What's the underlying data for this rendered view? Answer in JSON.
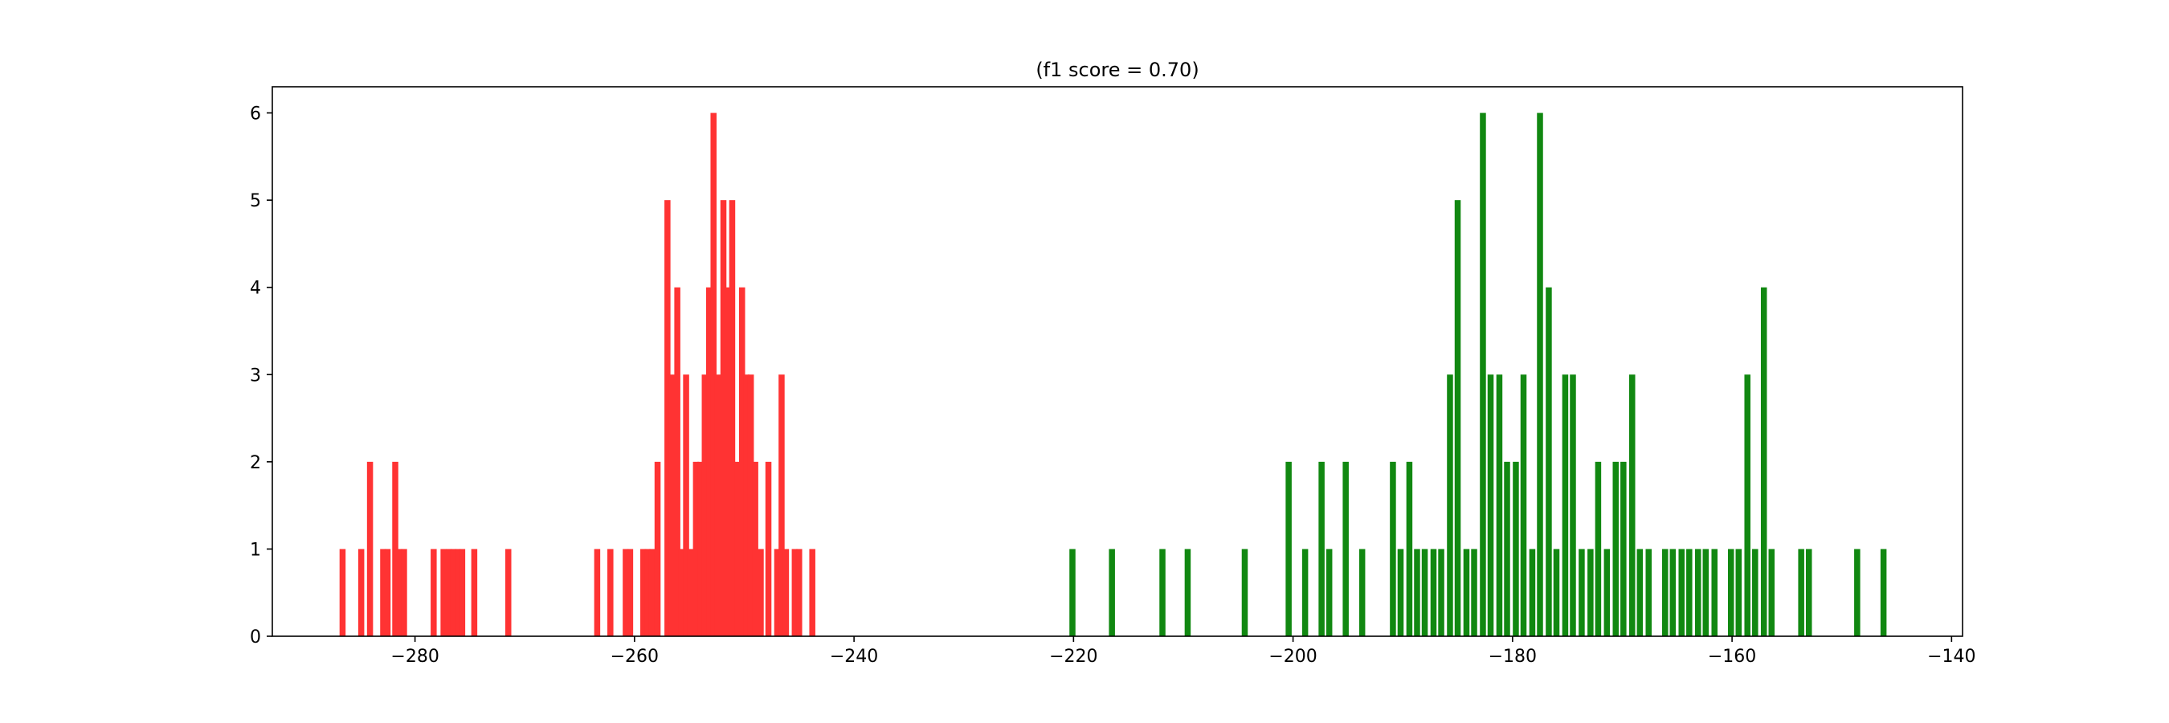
{
  "chart_data": {
    "type": "bar",
    "title": "(f1 score = 0.70)",
    "xlabel": "",
    "ylabel": "",
    "xlim": [
      -293,
      -139
    ],
    "ylim": [
      0,
      6.3
    ],
    "grid": false,
    "bar_width": 0.55,
    "x_ticks": [
      -280,
      -260,
      -240,
      -220,
      -200,
      -180,
      -160,
      -140
    ],
    "x_tick_labels": [
      "−280",
      "−260",
      "−240",
      "−220",
      "−200",
      "−180",
      "−160",
      "−140"
    ],
    "y_ticks": [
      0,
      1,
      2,
      3,
      4,
      5,
      6
    ],
    "y_tick_labels": [
      "0",
      "1",
      "2",
      "3",
      "4",
      "5",
      "6"
    ],
    "series": [
      {
        "color": "#ff3333",
        "x": [
          -286.6,
          -284.9,
          -284.1,
          -282.9,
          -282.5,
          -281.8,
          -281.4,
          -281.0,
          -278.3,
          -277.4,
          -276.9,
          -276.5,
          -276.1,
          -275.7,
          -274.6,
          -271.5,
          -263.4,
          -262.2,
          -260.8,
          -260.4,
          -259.2,
          -258.8,
          -258.4,
          -257.9,
          -257.0,
          -256.6,
          -256.1,
          -255.7,
          -255.3,
          -254.9,
          -254.4,
          -254.0,
          -253.6,
          -253.2,
          -252.8,
          -252.4,
          -251.9,
          -251.5,
          -251.1,
          -250.6,
          -250.2,
          -249.8,
          -249.4,
          -249.0,
          -248.5,
          -247.8,
          -247.0,
          -246.6,
          -246.2,
          -245.4,
          -245.0,
          -243.8
        ],
        "values": [
          1,
          1,
          2,
          1,
          1,
          2,
          1,
          1,
          1,
          1,
          1,
          1,
          1,
          1,
          1,
          1,
          1,
          1,
          1,
          1,
          1,
          1,
          1,
          2,
          5,
          3,
          4,
          1,
          3,
          1,
          2,
          2,
          3,
          4,
          6,
          3,
          5,
          4,
          5,
          2,
          4,
          3,
          3,
          2,
          1,
          2,
          1,
          3,
          1,
          1,
          1,
          1
        ]
      },
      {
        "color": "#118811",
        "x": [
          -220.1,
          -216.5,
          -211.9,
          -209.6,
          -204.4,
          -200.4,
          -198.9,
          -197.4,
          -196.7,
          -195.2,
          -193.7,
          -190.9,
          -190.2,
          -189.4,
          -188.7,
          -188.0,
          -187.2,
          -186.5,
          -185.7,
          -185.0,
          -184.2,
          -183.5,
          -182.7,
          -182.0,
          -181.2,
          -180.5,
          -179.7,
          -179.0,
          -178.2,
          -177.5,
          -176.7,
          -176.0,
          -175.2,
          -174.5,
          -173.7,
          -172.9,
          -172.2,
          -171.4,
          -170.6,
          -169.9,
          -169.1,
          -168.4,
          -167.6,
          -166.1,
          -165.4,
          -164.6,
          -163.9,
          -163.1,
          -162.4,
          -161.6,
          -160.1,
          -159.4,
          -158.6,
          -157.9,
          -157.1,
          -156.4,
          -153.7,
          -153.0,
          -148.6,
          -146.2
        ],
        "values": [
          1,
          1,
          1,
          1,
          1,
          2,
          1,
          2,
          1,
          2,
          1,
          2,
          1,
          2,
          1,
          1,
          1,
          1,
          3,
          5,
          1,
          1,
          6,
          3,
          3,
          2,
          2,
          3,
          1,
          6,
          4,
          1,
          3,
          3,
          1,
          1,
          2,
          1,
          2,
          2,
          3,
          1,
          1,
          1,
          1,
          1,
          1,
          1,
          1,
          1,
          1,
          1,
          3,
          1,
          4,
          1,
          1,
          1,
          1,
          1
        ]
      }
    ]
  }
}
